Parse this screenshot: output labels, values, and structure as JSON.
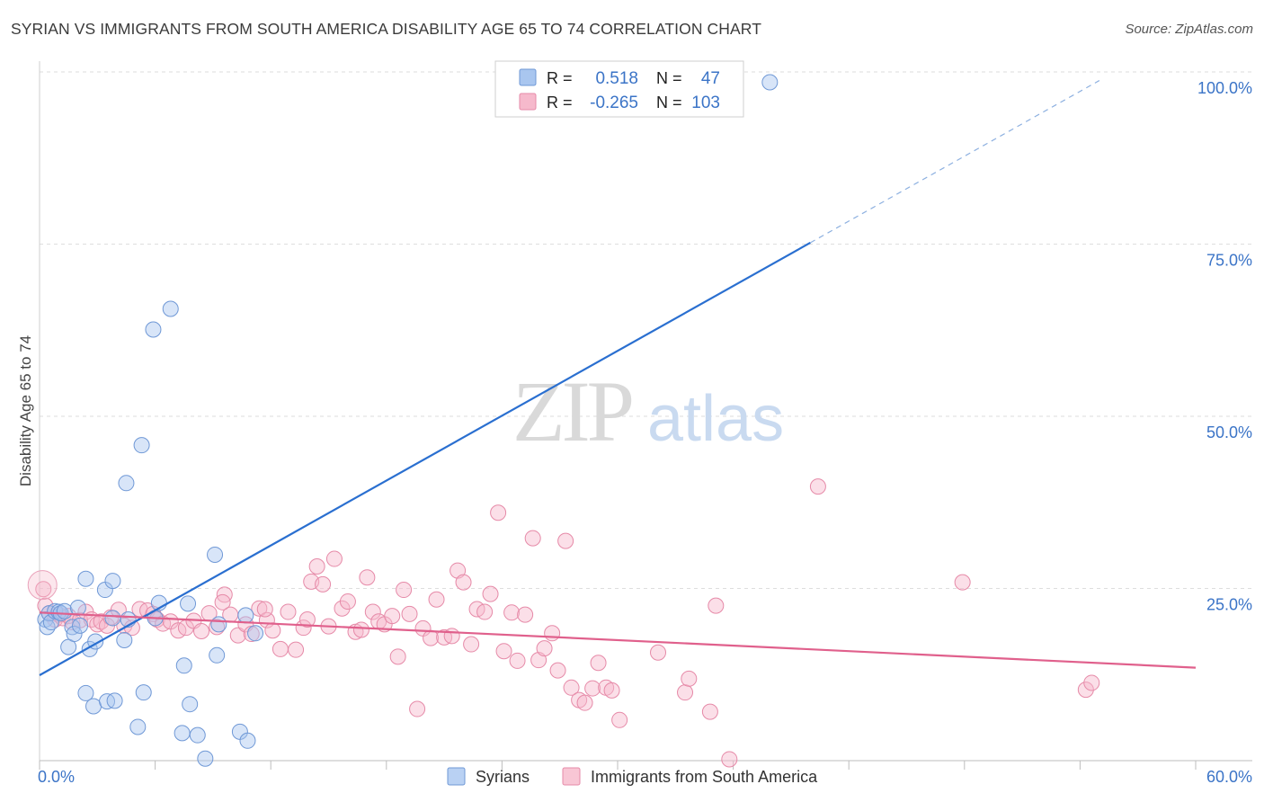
{
  "header": {
    "title": "SYRIAN VS IMMIGRANTS FROM SOUTH AMERICA DISABILITY AGE 65 TO 74 CORRELATION CHART",
    "source": "Source: ZipAtlas.com"
  },
  "watermark": {
    "zip": "ZIP",
    "atlas": "atlas"
  },
  "legend_box": {
    "rows": [
      {
        "r_label": "R =",
        "r_value": "0.518",
        "n_label": "N =",
        "n_value": "47",
        "color": "#a9c6ef",
        "edge": "#6f98d6"
      },
      {
        "r_label": "R =",
        "r_value": "-0.265",
        "n_label": "N =",
        "n_value": "103",
        "color": "#f6b9cc",
        "edge": "#e68aa8"
      }
    ]
  },
  "bottom_legend": [
    {
      "label": "Syrians",
      "color": "#b9d1f3",
      "edge": "#6f98d6"
    },
    {
      "label": "Immigrants from South America",
      "color": "#f8c6d5",
      "edge": "#e68aa8"
    }
  ],
  "colors": {
    "blue_line": "#2a6fd0",
    "pink_line": "#e0608c",
    "tick_blue": "#3b74c7",
    "grid": "#dedede"
  },
  "chart_data": {
    "type": "scatter",
    "ylabel": "Disability Age 65 to 74",
    "xlabel": "",
    "xlim": [
      0,
      60
    ],
    "ylim": [
      0,
      100
    ],
    "x_tick_labels": [
      "0.0%",
      "60.0%"
    ],
    "y_ticks": [
      {
        "value": 25,
        "label": "25.0%"
      },
      {
        "value": 50,
        "label": "50.0%"
      },
      {
        "value": 75,
        "label": "75.0%"
      },
      {
        "value": 100,
        "label": "100.0%"
      }
    ],
    "grid": true,
    "legend_position": "top-center",
    "series": [
      {
        "name": "Syrians",
        "R": 0.518,
        "N": 47,
        "trend": {
          "x0": 0,
          "y0": 12.4,
          "x1": 40,
          "y1": 75.2,
          "dash_to_x": 55
        },
        "points": [
          [
            0.3,
            20.5
          ],
          [
            0.4,
            19.4
          ],
          [
            0.5,
            21.4
          ],
          [
            0.6,
            20.1
          ],
          [
            0.8,
            21.7
          ],
          [
            1.0,
            21.6
          ],
          [
            1.1,
            21.4
          ],
          [
            1.3,
            21.7
          ],
          [
            1.5,
            16.5
          ],
          [
            1.7,
            19.4
          ],
          [
            1.8,
            18.4
          ],
          [
            2.0,
            22.2
          ],
          [
            2.1,
            19.6
          ],
          [
            2.4,
            26.4
          ],
          [
            2.6,
            16.2
          ],
          [
            2.9,
            17.3
          ],
          [
            3.4,
            24.8
          ],
          [
            3.8,
            26.1
          ],
          [
            3.8,
            20.7
          ],
          [
            4.4,
            17.5
          ],
          [
            4.6,
            20.5
          ],
          [
            2.4,
            9.8
          ],
          [
            2.8,
            7.9
          ],
          [
            3.5,
            8.6
          ],
          [
            3.9,
            8.7
          ],
          [
            5.4,
            9.9
          ],
          [
            6.0,
            20.7
          ],
          [
            6.2,
            22.9
          ],
          [
            4.5,
            40.3
          ],
          [
            5.3,
            45.8
          ],
          [
            5.9,
            62.6
          ],
          [
            6.8,
            65.6
          ],
          [
            7.5,
            13.8
          ],
          [
            7.4,
            4.0
          ],
          [
            7.7,
            22.8
          ],
          [
            7.8,
            8.2
          ],
          [
            8.2,
            3.7
          ],
          [
            8.6,
            0.3
          ],
          [
            9.1,
            29.9
          ],
          [
            9.2,
            15.3
          ],
          [
            9.3,
            19.8
          ],
          [
            10.4,
            4.2
          ],
          [
            10.7,
            21.1
          ],
          [
            10.8,
            2.9
          ],
          [
            11.2,
            18.5
          ],
          [
            5.1,
            4.9
          ],
          [
            37.9,
            98.5
          ]
        ]
      },
      {
        "name": "Immigrants from South America",
        "R": -0.265,
        "N": 103,
        "trend": {
          "x0": 0,
          "y0": 21.5,
          "x1": 60,
          "y1": 13.5
        },
        "points": [
          [
            0.2,
            24.9
          ],
          [
            0.3,
            22.5
          ],
          [
            0.5,
            21.4
          ],
          [
            0.8,
            20.5
          ],
          [
            1.0,
            21.2
          ],
          [
            1.2,
            20.7
          ],
          [
            1.5,
            21.0
          ],
          [
            1.7,
            20.1
          ],
          [
            2.1,
            20.4
          ],
          [
            2.4,
            21.6
          ],
          [
            2.7,
            20.5
          ],
          [
            3.0,
            19.8
          ],
          [
            3.2,
            20.2
          ],
          [
            3.5,
            19.6
          ],
          [
            3.7,
            20.8
          ],
          [
            4.1,
            21.9
          ],
          [
            4.4,
            19.6
          ],
          [
            4.8,
            19.3
          ],
          [
            5.2,
            22.0
          ],
          [
            5.6,
            21.8
          ],
          [
            5.9,
            21.3
          ],
          [
            6.1,
            20.5
          ],
          [
            6.4,
            19.9
          ],
          [
            6.8,
            20.2
          ],
          [
            7.2,
            18.9
          ],
          [
            7.6,
            19.3
          ],
          [
            8.0,
            20.3
          ],
          [
            8.4,
            18.8
          ],
          [
            8.8,
            21.4
          ],
          [
            9.2,
            19.4
          ],
          [
            9.6,
            24.1
          ],
          [
            9.9,
            21.2
          ],
          [
            10.3,
            18.2
          ],
          [
            10.7,
            19.8
          ],
          [
            11.0,
            18.4
          ],
          [
            11.4,
            22.1
          ],
          [
            11.8,
            20.4
          ],
          [
            12.1,
            18.9
          ],
          [
            12.5,
            16.2
          ],
          [
            12.9,
            21.6
          ],
          [
            13.3,
            16.1
          ],
          [
            13.7,
            19.3
          ],
          [
            14.1,
            26.0
          ],
          [
            14.4,
            28.2
          ],
          [
            14.7,
            25.6
          ],
          [
            15.0,
            19.5
          ],
          [
            15.3,
            29.3
          ],
          [
            15.7,
            22.1
          ],
          [
            16.0,
            23.1
          ],
          [
            16.4,
            18.7
          ],
          [
            16.7,
            19.0
          ],
          [
            17.0,
            26.6
          ],
          [
            17.3,
            21.6
          ],
          [
            17.6,
            20.2
          ],
          [
            17.9,
            19.8
          ],
          [
            18.3,
            21.0
          ],
          [
            18.6,
            15.1
          ],
          [
            18.9,
            24.8
          ],
          [
            19.2,
            21.3
          ],
          [
            19.6,
            7.5
          ],
          [
            19.9,
            19.2
          ],
          [
            20.3,
            17.8
          ],
          [
            20.6,
            23.4
          ],
          [
            21.0,
            17.9
          ],
          [
            21.4,
            18.1
          ],
          [
            21.7,
            27.6
          ],
          [
            22.0,
            25.9
          ],
          [
            22.4,
            16.9
          ],
          [
            22.7,
            22.0
          ],
          [
            23.1,
            21.6
          ],
          [
            23.4,
            24.2
          ],
          [
            23.8,
            36.0
          ],
          [
            24.1,
            15.9
          ],
          [
            24.5,
            21.5
          ],
          [
            24.8,
            14.5
          ],
          [
            25.2,
            21.2
          ],
          [
            25.6,
            32.3
          ],
          [
            25.9,
            14.6
          ],
          [
            26.2,
            16.3
          ],
          [
            26.6,
            18.5
          ],
          [
            26.9,
            13.1
          ],
          [
            27.3,
            31.9
          ],
          [
            27.6,
            10.6
          ],
          [
            28.0,
            8.8
          ],
          [
            28.3,
            8.4
          ],
          [
            28.7,
            10.5
          ],
          [
            29.0,
            14.2
          ],
          [
            29.4,
            10.6
          ],
          [
            29.7,
            10.2
          ],
          [
            30.1,
            5.9
          ],
          [
            32.1,
            15.7
          ],
          [
            33.5,
            9.9
          ],
          [
            33.7,
            11.9
          ],
          [
            34.8,
            7.1
          ],
          [
            35.1,
            22.5
          ],
          [
            35.8,
            0.2
          ],
          [
            40.4,
            39.8
          ],
          [
            47.9,
            25.9
          ],
          [
            54.3,
            10.3
          ],
          [
            54.6,
            11.3
          ],
          [
            11.7,
            22.0
          ],
          [
            13.9,
            20.5
          ],
          [
            9.5,
            23.0
          ]
        ]
      }
    ]
  }
}
